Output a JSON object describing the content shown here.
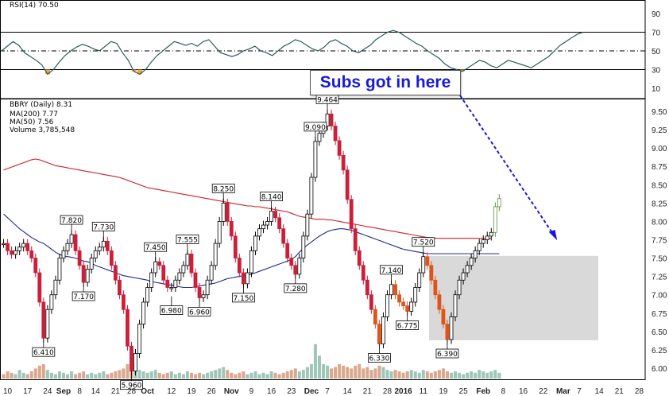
{
  "chart_data": {
    "type": "candlestick",
    "symbol": "BBRY",
    "period": "Daily",
    "last_price": "8.31",
    "legend": {
      "title": "BBRY (Daily) 8.31",
      "ma200": "MA(200) 7.77",
      "ma50": "MA(50) 7.56",
      "volume": "Volume 3,785,548"
    },
    "rsi": {
      "label": "RSI(14) 70.50",
      "ticks": [
        "90",
        "70",
        "50",
        "30",
        "10"
      ],
      "tick_values": [
        90,
        70,
        50,
        30,
        10
      ],
      "overbought": 70,
      "oversold": 30,
      "values": [
        50,
        55,
        60,
        56,
        48,
        44,
        40,
        35,
        25,
        30,
        38,
        45,
        50,
        54,
        57,
        55,
        52,
        50,
        55,
        60,
        58,
        48,
        40,
        28,
        25,
        30,
        38,
        45,
        50,
        55,
        60,
        58,
        56,
        58,
        55,
        60,
        62,
        55,
        48,
        46,
        44,
        46,
        50,
        52,
        55,
        50,
        48,
        45,
        50,
        55,
        58,
        62,
        60,
        56,
        52,
        50,
        54,
        60,
        62,
        58,
        55,
        50,
        48,
        52,
        56,
        62,
        66,
        70,
        72,
        70,
        66,
        62,
        58,
        55,
        50,
        46,
        42,
        36,
        32,
        30,
        28,
        32,
        36,
        40,
        38,
        34,
        32,
        36,
        40,
        38,
        36,
        34,
        32,
        36,
        40,
        44,
        50,
        56,
        60,
        64,
        68,
        70
      ]
    },
    "price_axis": {
      "min": 6.0,
      "max": 9.5,
      "ticks": [
        "9.50",
        "9.25",
        "9.00",
        "8.75",
        "8.50",
        "8.25",
        "8.00",
        "7.75",
        "7.50",
        "7.25",
        "7.00",
        "6.75",
        "6.50",
        "6.25",
        "6.00"
      ],
      "tick_values": [
        9.5,
        9.25,
        9.0,
        8.75,
        8.5,
        8.25,
        8.0,
        7.75,
        7.5,
        7.25,
        7.0,
        6.75,
        6.5,
        6.25,
        6.0
      ]
    },
    "x_axis_labels": [
      {
        "text": "10",
        "idx": 1
      },
      {
        "text": "17",
        "idx": 6
      },
      {
        "text": "24",
        "idx": 11
      },
      {
        "text": "Sep",
        "idx": 15,
        "bold": true
      },
      {
        "text": "8",
        "idx": 19
      },
      {
        "text": "14",
        "idx": 23
      },
      {
        "text": "21",
        "idx": 28
      },
      {
        "text": "28",
        "idx": 32
      },
      {
        "text": "Oct",
        "idx": 36,
        "bold": true
      },
      {
        "text": "12",
        "idx": 42
      },
      {
        "text": "19",
        "idx": 47
      },
      {
        "text": "26",
        "idx": 52
      },
      {
        "text": "Nov",
        "idx": 57,
        "bold": true
      },
      {
        "text": "9",
        "idx": 62
      },
      {
        "text": "16",
        "idx": 67
      },
      {
        "text": "23",
        "idx": 72
      },
      {
        "text": "Dec",
        "idx": 77,
        "bold": true
      },
      {
        "text": "7",
        "idx": 81
      },
      {
        "text": "14",
        "idx": 86
      },
      {
        "text": "21",
        "idx": 91
      },
      {
        "text": "28",
        "idx": 96
      },
      {
        "text": "2016",
        "idx": 100,
        "bold": true
      },
      {
        "text": "11",
        "idx": 105
      },
      {
        "text": "19",
        "idx": 110
      },
      {
        "text": "25",
        "idx": 115
      },
      {
        "text": "Feb",
        "idx": 120,
        "bold": true
      },
      {
        "text": "8",
        "idx": 125
      },
      {
        "text": "16",
        "idx": 130
      },
      {
        "text": "22",
        "idx": 135
      },
      {
        "text": "Mar",
        "idx": 140,
        "bold": true
      },
      {
        "text": "7",
        "idx": 144
      },
      {
        "text": "14",
        "idx": 149
      },
      {
        "text": "21",
        "idx": 154
      },
      {
        "text": "28",
        "idx": 159
      }
    ],
    "closes": [
      7.7,
      7.6,
      7.55,
      7.6,
      7.65,
      7.7,
      7.6,
      7.5,
      7.3,
      6.9,
      6.41,
      6.8,
      7.0,
      7.2,
      7.5,
      7.6,
      7.7,
      7.82,
      7.6,
      7.4,
      7.17,
      7.35,
      7.5,
      7.6,
      7.65,
      7.73,
      7.6,
      7.4,
      7.2,
      7.0,
      6.8,
      6.3,
      5.96,
      6.2,
      6.6,
      6.9,
      7.1,
      7.3,
      7.45,
      7.4,
      7.2,
      7.1,
      7.1,
      7.2,
      7.3,
      7.4,
      7.555,
      7.3,
      7.1,
      6.96,
      7.0,
      7.2,
      7.4,
      7.7,
      8.0,
      8.25,
      8.0,
      7.8,
      7.5,
      7.3,
      7.15,
      7.3,
      7.6,
      7.8,
      7.9,
      7.95,
      8.0,
      8.14,
      8.05,
      7.9,
      7.7,
      7.5,
      7.4,
      7.28,
      7.5,
      7.8,
      8.1,
      8.6,
      9.09,
      9.2,
      9.3,
      9.464,
      9.3,
      9.1,
      8.9,
      8.7,
      8.3,
      7.9,
      7.6,
      7.4,
      7.2,
      7.0,
      6.8,
      6.6,
      6.33,
      6.7,
      7.0,
      7.14,
      7.0,
      6.9,
      6.85,
      6.775,
      6.9,
      7.1,
      7.3,
      7.52,
      7.4,
      7.2,
      7.0,
      6.8,
      6.6,
      6.39,
      6.7,
      7.0,
      7.2,
      7.3,
      7.4,
      7.5,
      7.6,
      7.7,
      7.75,
      7.8,
      7.85,
      8.2,
      8.31
    ],
    "ma200": [
      8.7,
      8.72,
      8.74,
      8.76,
      8.78,
      8.8,
      8.82,
      8.84,
      8.85,
      8.84,
      8.82,
      8.8,
      8.78,
      8.76,
      8.75,
      8.74,
      8.73,
      8.72,
      8.71,
      8.7,
      8.69,
      8.68,
      8.67,
      8.66,
      8.65,
      8.64,
      8.63,
      8.62,
      8.61,
      8.6,
      8.58,
      8.56,
      8.54,
      8.52,
      8.5,
      8.48,
      8.46,
      8.45,
      8.44,
      8.43,
      8.42,
      8.41,
      8.4,
      8.39,
      8.38,
      8.37,
      8.36,
      8.35,
      8.34,
      8.33,
      8.32,
      8.31,
      8.3,
      8.29,
      8.28,
      8.27,
      8.26,
      8.25,
      8.24,
      8.23,
      8.22,
      8.21,
      8.21,
      8.2,
      8.2,
      8.19,
      8.18,
      8.17,
      8.16,
      8.15,
      8.14,
      8.13,
      8.11,
      8.09,
      8.07,
      8.06,
      8.05,
      8.04,
      8.03,
      8.03,
      8.03,
      8.02,
      8.02,
      8.01,
      8.0,
      7.99,
      7.98,
      7.97,
      7.96,
      7.95,
      7.94,
      7.93,
      7.92,
      7.91,
      7.9,
      7.89,
      7.88,
      7.87,
      7.86,
      7.85,
      7.84,
      7.83,
      7.82,
      7.81,
      7.8,
      7.79,
      7.78,
      7.78,
      7.77,
      7.77,
      7.77,
      7.77,
      7.77,
      7.77,
      7.77,
      7.77,
      7.77,
      7.77,
      7.77,
      7.77,
      7.77,
      7.77,
      7.77
    ],
    "ma50": [
      8.1,
      8.05,
      8.0,
      7.95,
      7.9,
      7.86,
      7.82,
      7.78,
      7.75,
      7.72,
      7.7,
      7.66,
      7.62,
      7.58,
      7.55,
      7.53,
      7.52,
      7.51,
      7.5,
      7.48,
      7.46,
      7.45,
      7.43,
      7.4,
      7.38,
      7.36,
      7.34,
      7.32,
      7.3,
      7.28,
      7.26,
      7.25,
      7.24,
      7.23,
      7.22,
      7.21,
      7.2,
      7.18,
      7.17,
      7.16,
      7.15,
      7.14,
      7.13,
      7.12,
      7.11,
      7.1,
      7.1,
      7.1,
      7.11,
      7.12,
      7.13,
      7.14,
      7.15,
      7.16,
      7.18,
      7.2,
      7.22,
      7.23,
      7.24,
      7.25,
      7.26,
      7.27,
      7.28,
      7.3,
      7.32,
      7.34,
      7.36,
      7.38,
      7.4,
      7.42,
      7.44,
      7.46,
      7.48,
      7.52,
      7.58,
      7.63,
      7.68,
      7.72,
      7.76,
      7.8,
      7.83,
      7.86,
      7.88,
      7.89,
      7.9,
      7.9,
      7.89,
      7.88,
      7.86,
      7.84,
      7.82,
      7.8,
      7.78,
      7.76,
      7.74,
      7.72,
      7.7,
      7.68,
      7.66,
      7.64,
      7.62,
      7.61,
      7.6,
      7.59,
      7.58,
      7.57,
      7.56,
      7.56,
      7.56,
      7.56,
      7.56,
      7.56,
      7.56,
      7.56,
      7.56,
      7.56,
      7.56,
      7.56,
      7.56,
      7.56,
      7.56,
      7.56,
      7.56,
      7.56,
      7.56
    ],
    "price_labels": [
      {
        "text": "7.820",
        "idx": 17,
        "value": 7.82,
        "pos": "above"
      },
      {
        "text": "7.730",
        "idx": 25,
        "value": 7.73,
        "pos": "above"
      },
      {
        "text": "7.170",
        "idx": 20,
        "value": 7.17,
        "pos": "below"
      },
      {
        "text": "6.410",
        "idx": 10,
        "value": 6.41,
        "pos": "below"
      },
      {
        "text": "5.960",
        "idx": 32,
        "value": 5.96,
        "pos": "below"
      },
      {
        "text": "7.450",
        "idx": 38,
        "value": 7.45,
        "pos": "above"
      },
      {
        "text": "6.980",
        "idx": 42,
        "value": 6.98,
        "pos": "below"
      },
      {
        "text": "7.555",
        "idx": 46,
        "value": 7.555,
        "pos": "above"
      },
      {
        "text": "6.960",
        "idx": 49,
        "value": 6.96,
        "pos": "below"
      },
      {
        "text": "8.250",
        "idx": 55,
        "value": 8.25,
        "pos": "above"
      },
      {
        "text": "7.150",
        "idx": 60,
        "value": 7.15,
        "pos": "below"
      },
      {
        "text": "8.140",
        "idx": 67,
        "value": 8.14,
        "pos": "above"
      },
      {
        "text": "7.280",
        "idx": 73,
        "value": 7.28,
        "pos": "below"
      },
      {
        "text": "9.090",
        "idx": 78,
        "value": 9.09,
        "pos": "above"
      },
      {
        "text": "9.464",
        "idx": 81,
        "value": 9.464,
        "pos": "above"
      },
      {
        "text": "7.140",
        "idx": 97,
        "value": 7.14,
        "pos": "above"
      },
      {
        "text": "6.775",
        "idx": 101,
        "value": 6.775,
        "pos": "below"
      },
      {
        "text": "6.330",
        "idx": 94,
        "value": 6.33,
        "pos": "below"
      },
      {
        "text": "7.520",
        "idx": 105,
        "value": 7.52,
        "pos": "above"
      },
      {
        "text": "6.390",
        "idx": 111,
        "value": 6.39,
        "pos": "below"
      }
    ],
    "volume_relative": [
      0.3,
      0.5,
      0.4,
      0.3,
      0.6,
      0.4,
      0.3,
      0.5,
      0.7,
      0.9,
      1.0,
      0.6,
      0.4,
      0.3,
      0.5,
      0.4,
      0.3,
      0.5,
      0.3,
      0.4,
      0.5,
      0.3,
      0.4,
      0.3,
      0.4,
      0.5,
      0.3,
      0.4,
      0.5,
      0.6,
      0.7,
      1.0,
      1.2,
      0.8,
      0.6,
      0.5,
      0.4,
      0.5,
      0.6,
      0.4,
      0.3,
      0.4,
      0.5,
      0.3,
      0.4,
      0.3,
      0.5,
      0.4,
      0.3,
      0.4,
      0.3,
      0.4,
      0.5,
      0.6,
      0.7,
      0.8,
      0.6,
      0.4,
      0.3,
      0.4,
      0.5,
      0.3,
      0.4,
      0.5,
      0.3,
      0.4,
      0.3,
      0.5,
      0.4,
      0.3,
      0.4,
      0.5,
      0.6,
      0.7,
      0.5,
      0.6,
      0.8,
      1.0,
      2.4,
      1.6,
      1.0,
      0.9,
      0.7,
      0.8,
      1.0,
      0.9,
      0.8,
      0.7,
      0.9,
      1.0,
      0.7,
      0.8,
      0.6,
      0.7,
      0.9,
      0.8,
      0.6,
      0.5,
      0.6,
      0.5,
      0.4,
      0.5,
      0.6,
      0.5,
      0.4,
      0.6,
      0.5,
      0.4,
      0.5,
      0.6,
      0.7,
      0.5,
      0.4,
      0.5,
      0.4,
      0.3,
      0.4,
      0.5,
      0.4,
      0.6,
      0.5,
      0.4,
      0.5,
      0.6,
      0.4
    ],
    "annotation": {
      "text": "Subs got in here"
    },
    "colors": {
      "up": "#000000",
      "down": "#cc1f3a",
      "recent_down": "#e0541c",
      "recent_up": "#5c8f3a",
      "ma200": "#d0202a",
      "ma50": "#232a8a",
      "rsi": "#2f5a5a",
      "volume": "#d9a88e",
      "volume_up": "#9fc6b9",
      "highlight": "#d9d9d9",
      "callout_text": "#1a1ad6"
    }
  }
}
